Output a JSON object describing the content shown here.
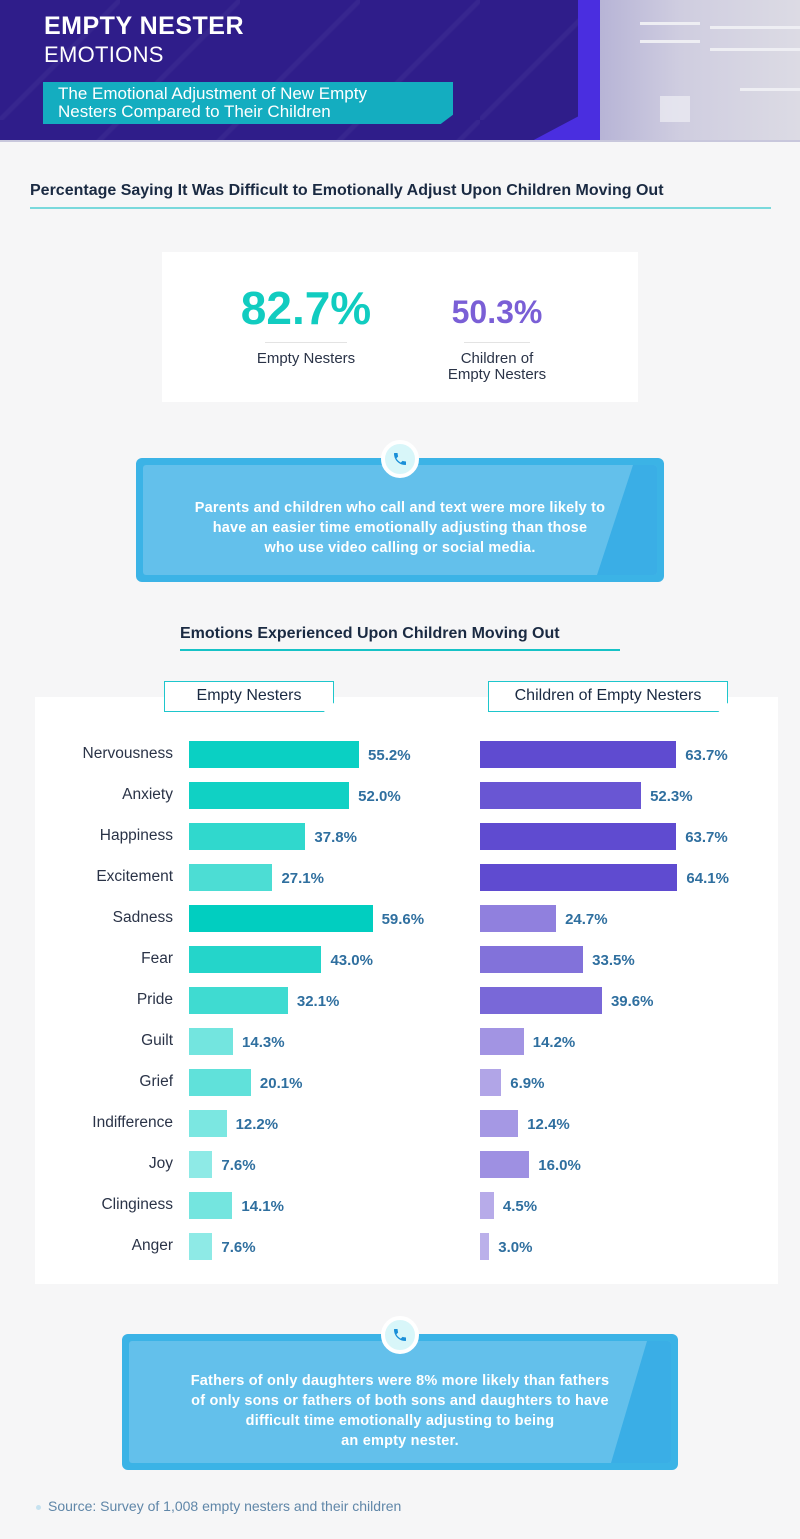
{
  "header": {
    "title_line1": "EMPTY NESTER",
    "title_line2": "EMOTIONS",
    "subtitle_line1": "The Emotional Adjustment of New Empty",
    "subtitle_line2": "Nesters Compared to Their Children"
  },
  "difficulty": {
    "title": "Percentage Saying It Was Difficult to Emotionally Adjust Upon Children Moving Out",
    "empty_nesters": {
      "value": "82.7%",
      "label": "Empty Nesters"
    },
    "children": {
      "value": "50.3%",
      "label_line1": "Children of",
      "label_line2": "Empty Nesters"
    }
  },
  "callout1": {
    "icon": "phone-icon",
    "lines": [
      "Parents and children who call and text were more likely to",
      "have an easier time emotionally adjusting than those",
      "who use video calling or social media."
    ]
  },
  "callout2": {
    "icon": "phone-icon",
    "lines": [
      "Fathers of only daughters were 8% more likely than fathers",
      "of only sons or fathers of both sons and daughters to have",
      "difficult time emotionally adjusting to being",
      "an empty nester."
    ]
  },
  "source": "Source: Survey of 1,008 empty nesters and their children",
  "colors": {
    "empty_nesters": "#11ccc0",
    "children": "#7a5fd6",
    "value_label": "#2f6f9f",
    "callout": "#3bb3e6",
    "header_bg": "#2f1d8a"
  },
  "chart_data": {
    "type": "bar",
    "orientation": "horizontal",
    "title": "Emotions Experienced Upon Children Moving Out",
    "xlabel": "",
    "ylabel": "",
    "unit": "%",
    "xlim": [
      0,
      100
    ],
    "grid": false,
    "legend_position": "top",
    "categories": [
      "Nervousness",
      "Anxiety",
      "Happiness",
      "Excitement",
      "Sadness",
      "Fear",
      "Pride",
      "Guilt",
      "Grief",
      "Indifference",
      "Joy",
      "Clinginess",
      "Anger"
    ],
    "series": [
      {
        "name": "Empty Nesters",
        "values": [
          55.2,
          52.0,
          37.8,
          27.1,
          59.6,
          43.0,
          32.1,
          14.3,
          20.1,
          12.2,
          7.6,
          14.1,
          7.6
        ],
        "labels": [
          "55.2%",
          "52.0%",
          "37.8%",
          "27.1%",
          "59.6%",
          "43.0%",
          "32.1%",
          "14.3%",
          "20.1%",
          "12.2%",
          "7.6%",
          "14.1%",
          "7.6%"
        ]
      },
      {
        "name": "Children of Empty Nesters",
        "values": [
          63.7,
          52.3,
          63.7,
          64.1,
          24.7,
          33.5,
          39.6,
          14.2,
          6.9,
          12.4,
          16.0,
          4.5,
          3.0
        ],
        "labels": [
          "63.7%",
          "52.3%",
          "63.7%",
          "64.1%",
          "24.7%",
          "33.5%",
          "39.6%",
          "14.2%",
          "6.9%",
          "12.4%",
          "16.0%",
          "4.5%",
          "3.0%"
        ]
      }
    ]
  }
}
